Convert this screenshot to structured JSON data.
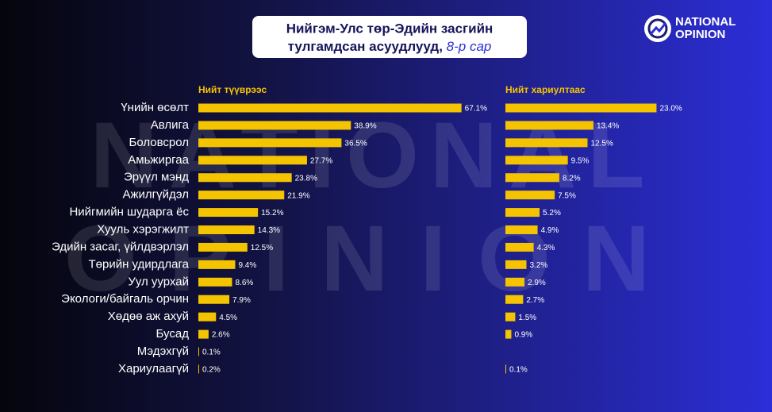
{
  "title_line1": "Нийгэм-Улс төр-Эдийн засгийн",
  "title_line2": "тулгамдсан асуудлууд,",
  "title_period": "8-р сар",
  "logo": {
    "line1": "NATIONAL",
    "line2": "OPINION"
  },
  "watermark": {
    "line1": "NATIONAL",
    "line2": "OPINION"
  },
  "chart_data": [
    {
      "type": "bar",
      "orientation": "horizontal",
      "title": "Нийт түүврээс",
      "categories": [
        "Үнийн өсөлт",
        "Авлига",
        "Боловсрол",
        "Амьжиргаа",
        "Эрүүл мэнд",
        "Ажилгүйдэл",
        "Нийгмийн шударга ёс",
        "Хууль хэрэгжилт",
        "Эдийн засаг, үйлдвэрлэл",
        "Төрийн удирдлага",
        "Уул уурхай",
        "Экологи/байгаль орчин",
        "Хөдөө аж ахуй",
        "Бусад",
        "Мэдэхгүй",
        "Хариулаагүй"
      ],
      "values": [
        67.1,
        38.9,
        36.5,
        27.7,
        23.8,
        21.9,
        15.2,
        14.3,
        12.5,
        9.4,
        8.6,
        7.9,
        4.5,
        2.6,
        0.1,
        0.2
      ],
      "value_labels": [
        "67.1%",
        "38.9%",
        "36.5%",
        "27.7%",
        "23.8%",
        "21.9%",
        "15.2%",
        "14.3%",
        "12.5%",
        "9.4%",
        "8.6%",
        "7.9%",
        "4.5%",
        "2.6%",
        "0.1%",
        "0.2%"
      ],
      "color": "#f5c400",
      "xlim": [
        0,
        70
      ]
    },
    {
      "type": "bar",
      "orientation": "horizontal",
      "title": "Нийт хариултаас",
      "values": [
        23.0,
        13.4,
        12.5,
        9.5,
        8.2,
        7.5,
        5.2,
        4.9,
        4.3,
        3.2,
        2.9,
        2.7,
        1.5,
        0.9,
        null,
        0.1
      ],
      "value_labels": [
        "23.0%",
        "13.4%",
        "12.5%",
        "9.5%",
        "8.2%",
        "7.5%",
        "5.2%",
        "4.9%",
        "4.3%",
        "3.2%",
        "2.9%",
        "2.7%",
        "1.5%",
        "0.9%",
        null,
        "0.1%"
      ],
      "color": "#f5c400",
      "xlim": [
        0,
        25
      ]
    }
  ]
}
